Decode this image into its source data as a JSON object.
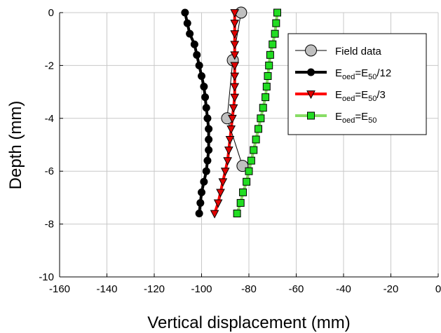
{
  "chart_data": {
    "type": "line",
    "xlabel": "Vertical displacement (mm)",
    "ylabel": "Depth (mm)",
    "xlim": [
      -160,
      0
    ],
    "ylim": [
      -10,
      0
    ],
    "xticks": [
      -160,
      -140,
      -120,
      -100,
      -80,
      -60,
      -40,
      -20,
      0
    ],
    "yticks": [
      0,
      -2,
      -4,
      -6,
      -8,
      -10
    ],
    "grid": true,
    "legend": "upper right",
    "series": [
      {
        "name": [
          "Field data"
        ],
        "color": "#c0c0c0",
        "line_color": "#000000",
        "marker": "circle",
        "x": [
          -83.3,
          -86.8,
          -89.2,
          -82.7
        ],
        "y": [
          0,
          -1.8,
          -4,
          -5.8
        ]
      },
      {
        "name": [
          "E",
          "oed",
          "=E",
          "50",
          "/12"
        ],
        "color": "#000000",
        "line_color": "#000000",
        "marker": "circle",
        "x": [
          -107,
          -106,
          -105,
          -103,
          -102,
          -101,
          -100,
          -99,
          -98.5,
          -98,
          -97.5,
          -97,
          -97,
          -97,
          -97.5,
          -98,
          -99,
          -100,
          -100.5,
          -101
        ],
        "y": [
          0,
          -0.4,
          -0.8,
          -1.2,
          -1.6,
          -2,
          -2.4,
          -2.8,
          -3.2,
          -3.6,
          -4,
          -4.4,
          -4.8,
          -5.2,
          -5.6,
          -6,
          -6.4,
          -6.8,
          -7.2,
          -7.6
        ]
      },
      {
        "name": [
          "E",
          "oed",
          "=E",
          "50",
          "/3"
        ],
        "color": "#e00000",
        "line_color": "#ff0000",
        "marker": "triangle-down",
        "x": [
          -86,
          -86,
          -86,
          -86,
          -86,
          -86,
          -86,
          -86,
          -86,
          -86.5,
          -87,
          -87.5,
          -88,
          -88.5,
          -89,
          -90,
          -91,
          -92,
          -93,
          -94.5
        ],
        "y": [
          0,
          -0.4,
          -0.8,
          -1.2,
          -1.6,
          -2,
          -2.4,
          -2.8,
          -3.2,
          -3.6,
          -4,
          -4.4,
          -4.8,
          -5.2,
          -5.6,
          -6,
          -6.4,
          -6.8,
          -7.2,
          -7.6
        ]
      },
      {
        "name": [
          "E",
          "oed",
          "=E",
          "50"
        ],
        "color": "#22dd22",
        "line_color": "#88dd66",
        "marker": "square",
        "x": [
          -68,
          -68.5,
          -69,
          -70,
          -71,
          -71.5,
          -72,
          -72.5,
          -73,
          -74,
          -75,
          -76,
          -77,
          -78,
          -79,
          -80,
          -81,
          -82.5,
          -83.5,
          -85
        ],
        "y": [
          0,
          -0.4,
          -0.8,
          -1.2,
          -1.6,
          -2,
          -2.4,
          -2.8,
          -3.2,
          -3.6,
          -4,
          -4.4,
          -4.8,
          -5.2,
          -5.6,
          -6,
          -6.4,
          -6.8,
          -7.2,
          -7.6
        ]
      }
    ]
  }
}
